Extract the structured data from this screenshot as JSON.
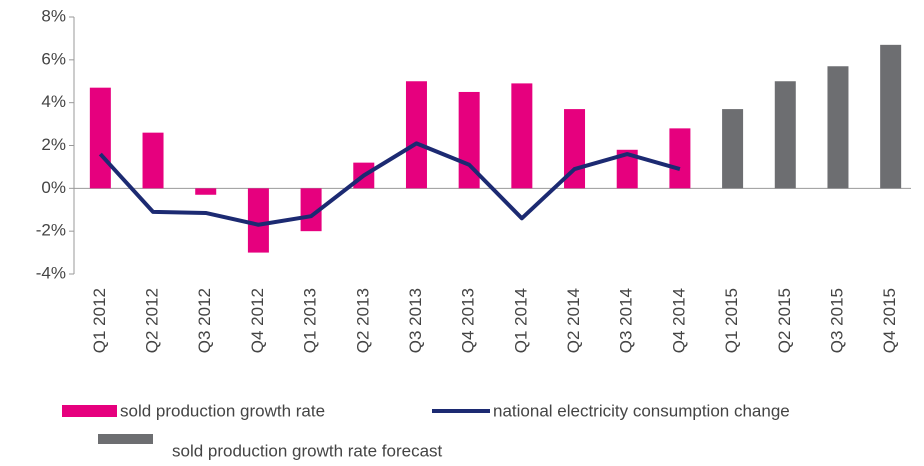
{
  "chart_data": {
    "type": "bar_line",
    "categories": [
      "Q1 2012",
      "Q2 2012",
      "Q3 2012",
      "Q4 2012",
      "Q1 2013",
      "Q2 2013",
      "Q3 2013",
      "Q4 2013",
      "Q1 2014",
      "Q2 2014",
      "Q3 2014",
      "Q4 2014",
      "Q1 2015",
      "Q2 2015",
      "Q3 2015",
      "Q4 2015"
    ],
    "series": [
      {
        "name": "sold production growth rate",
        "type": "bar",
        "color": "#e6007e",
        "values": [
          4.7,
          2.6,
          -0.3,
          -3.0,
          -2.0,
          1.2,
          5.0,
          4.5,
          4.9,
          3.7,
          1.8,
          2.8,
          null,
          null,
          null,
          null
        ]
      },
      {
        "name": "national electricity consumption change",
        "type": "line",
        "color": "#1c2a72",
        "values": [
          1.6,
          -1.1,
          -1.15,
          -1.7,
          -1.3,
          0.6,
          2.1,
          1.1,
          -1.4,
          0.9,
          1.6,
          0.9,
          null,
          null,
          null,
          null
        ]
      },
      {
        "name": "sold production growth rate forecast",
        "type": "bar",
        "color": "#6d6e71",
        "values": [
          null,
          null,
          null,
          null,
          null,
          null,
          null,
          null,
          null,
          null,
          null,
          null,
          3.7,
          5.0,
          5.7,
          6.7
        ]
      }
    ],
    "ylim": [
      -4,
      8
    ],
    "yticks": [
      {
        "value": -4,
        "label": "-4%"
      },
      {
        "value": -2,
        "label": "-2%"
      },
      {
        "value": 0,
        "label": "0%"
      },
      {
        "value": 2,
        "label": "2%"
      },
      {
        "value": 4,
        "label": "4%"
      },
      {
        "value": 6,
        "label": "6%"
      },
      {
        "value": 8,
        "label": "8%"
      }
    ]
  }
}
